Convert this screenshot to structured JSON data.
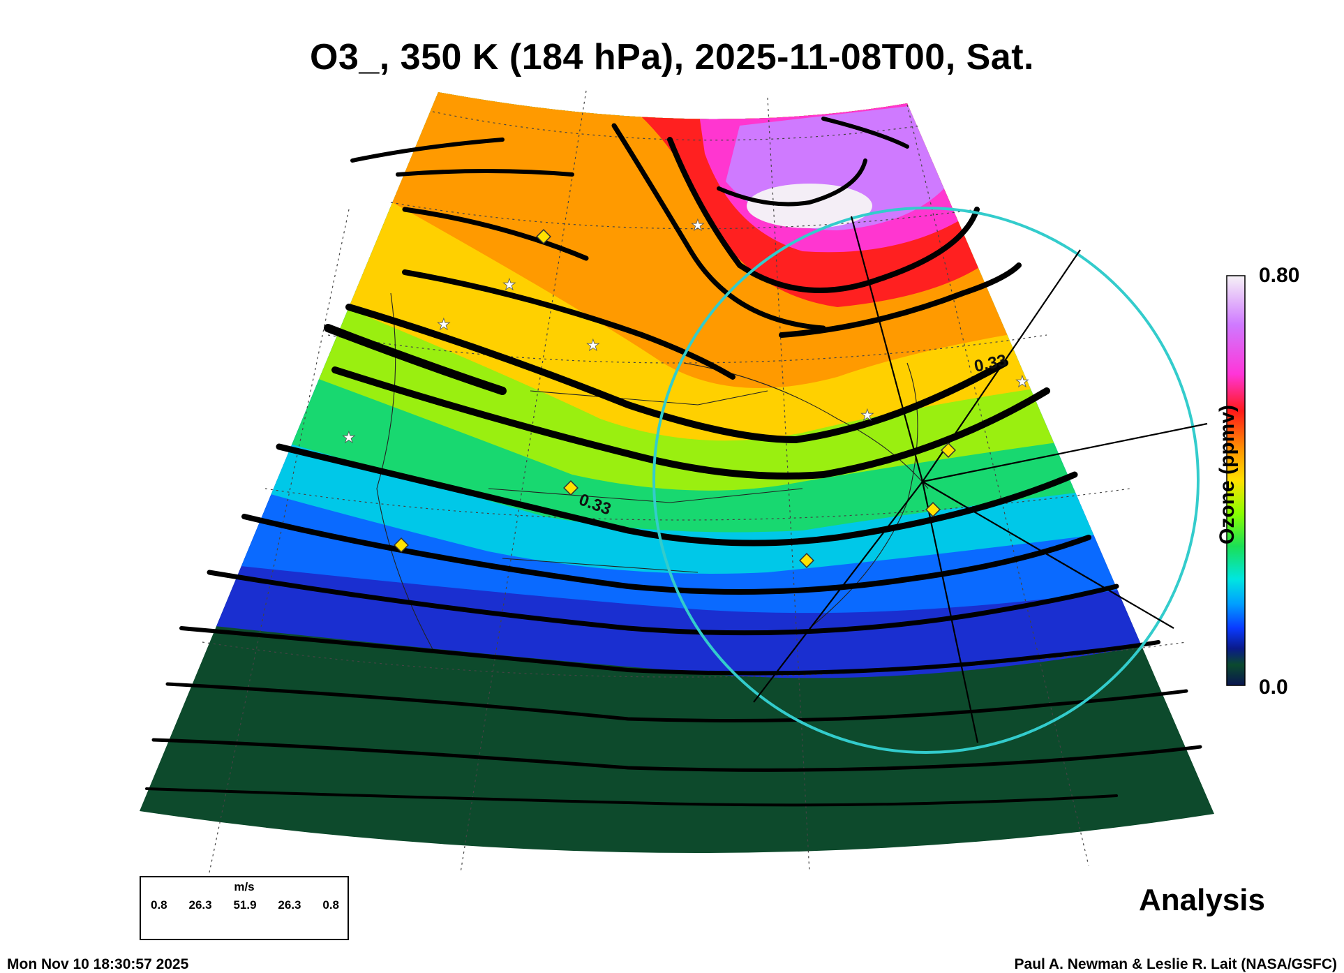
{
  "title": "O3_, 350 K (184 hPa), 2025-11-08T00, Sat.",
  "colorbar": {
    "max_label": "0.80",
    "min_label": "0.0",
    "title": "Ozone (ppmv)",
    "stops": [
      "#f6f2f6",
      "#cf79ff",
      "#ff35d8",
      "#ff1a1a",
      "#ff9b00",
      "#ffe000",
      "#8aff00",
      "#1bdf55",
      "#00e6e0",
      "#00a0ff",
      "#0a3aff",
      "#0a1a8a",
      "#0b4a2e",
      "#0a1550"
    ]
  },
  "contour_labels": [
    "0.33",
    "0.33"
  ],
  "wind_legend": {
    "unit": "m/s",
    "values": [
      "0.8",
      "26.3",
      "51.9",
      "26.3",
      "0.8"
    ]
  },
  "analysis_label": "Analysis",
  "footer": {
    "timestamp": "Mon Nov 10 18:30:57 2025",
    "credit": "Paul A. Newman & Leslie R. Lait (NASA/GSFC)"
  },
  "colors": {
    "circle": "#33cccc",
    "station_diamond": "#ffe200",
    "streamline": "#000000"
  }
}
